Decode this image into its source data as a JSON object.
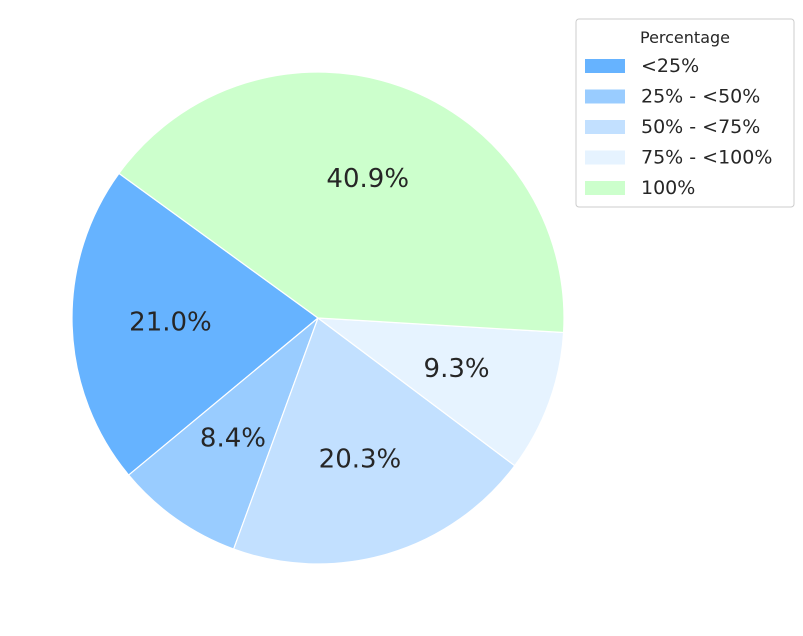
{
  "chart_data": {
    "type": "pie",
    "categories": [
      "<25%",
      "25% - <50%",
      "50% - <75%",
      "75% - <100%",
      "100%"
    ],
    "values": [
      21.0,
      8.4,
      20.3,
      9.3,
      40.9
    ],
    "value_labels": [
      "21.0%",
      "8.4%",
      "20.3%",
      "9.3%",
      "40.9%"
    ],
    "colors": [
      "#66b3ff",
      "#99ccff",
      "#c2e0ff",
      "#e6f3ff",
      "#ccffcc"
    ],
    "legend": {
      "title": "Percentage",
      "placement": "top-right"
    },
    "start_angle_deg": 144,
    "direction": "counterclockwise"
  }
}
